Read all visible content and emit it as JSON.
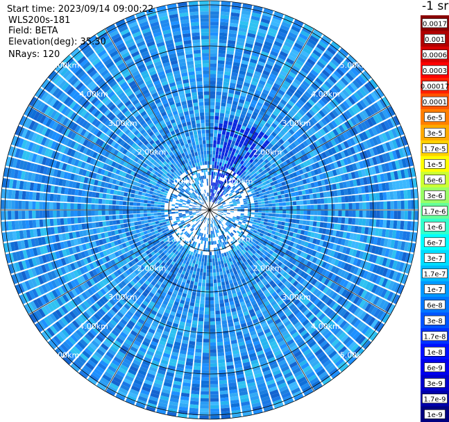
{
  "header": {
    "start_time": "Start time: 2023/09/14 09:00:22",
    "instrument": "WLS200s-181",
    "field": "Field: BETA",
    "elevation": "Elevation(deg): 35.30",
    "nrays": "NRays: 120"
  },
  "colorbar": {
    "units_label": "-1 sr",
    "labels": [
      "0.0017",
      "0.001",
      "0.0006",
      "0.0003",
      "0.00017",
      "0.0001",
      "6e-5",
      "3e-5",
      "1.7e-5",
      "1e-5",
      "6e-6",
      "3e-6",
      "1.7e-6",
      "1e-6",
      "6e-7",
      "3e-7",
      "1.7e-7",
      "1e-7",
      "6e-8",
      "3e-8",
      "1.7e-8",
      "1e-8",
      "6e-9",
      "3e-9",
      "1.7e-9",
      "1e-9"
    ],
    "colors": [
      "#8b0000",
      "#b00000",
      "#d80000",
      "#ff0000",
      "#ff2000",
      "#ff5500",
      "#ff7f00",
      "#ffaa00",
      "#ffd200",
      "#ffff00",
      "#ccff33",
      "#99ff66",
      "#66ff99",
      "#33ffcc",
      "#00ffff",
      "#00ddff",
      "#00bbff",
      "#0099ff",
      "#0077ff",
      "#0055ff",
      "#0033ff",
      "#0011ff",
      "#0000ee",
      "#0000cc",
      "#0000aa",
      "#000080"
    ]
  },
  "chart_data": {
    "type": "heatmap",
    "projection": "polar (PPI)",
    "nrays": 120,
    "elevation_deg": 35.3,
    "field": "BETA",
    "range_rings_km": [
      1,
      2,
      3,
      4,
      5
    ],
    "ring_labels": [
      "1.00km",
      "2.00km",
      "3.00km",
      "4.00km",
      "5.00km"
    ],
    "max_range_km": 5.15,
    "dominant_value_range": [
      "1e-8",
      "1e-7"
    ],
    "color_scale": "log"
  }
}
